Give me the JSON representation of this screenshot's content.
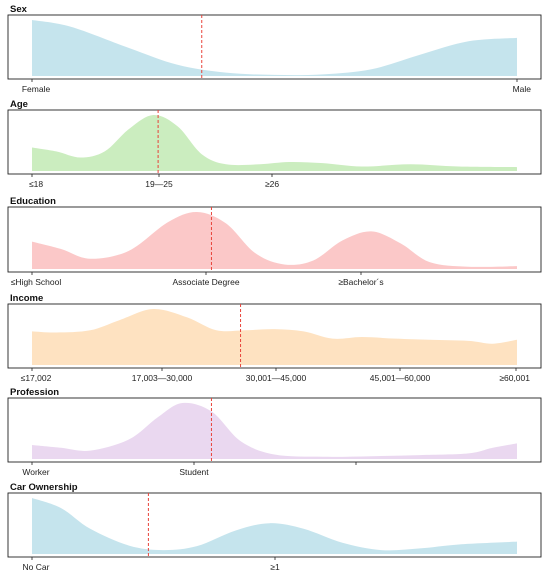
{
  "chart_data": [
    {
      "type": "area",
      "title": "Sex",
      "color": "#add8e6",
      "tick_labels": [
        "Female",
        "Male"
      ],
      "density": [
        [
          0,
          1.0
        ],
        [
          0.08,
          0.88
        ],
        [
          0.2,
          0.5
        ],
        [
          0.3,
          0.2
        ],
        [
          0.4,
          0.06
        ],
        [
          0.5,
          0.02
        ],
        [
          0.6,
          0.03
        ],
        [
          0.7,
          0.12
        ],
        [
          0.8,
          0.38
        ],
        [
          0.9,
          0.62
        ],
        [
          1.0,
          0.68
        ]
      ],
      "mean": 0.35
    },
    {
      "type": "area",
      "title": "Age",
      "color": "#b5e6a4",
      "tick_labels": [
        "≤18",
        "19—25",
        "≥26"
      ],
      "density": [
        [
          0,
          0.42
        ],
        [
          0.05,
          0.35
        ],
        [
          0.1,
          0.24
        ],
        [
          0.15,
          0.35
        ],
        [
          0.2,
          0.75
        ],
        [
          0.25,
          1.0
        ],
        [
          0.3,
          0.8
        ],
        [
          0.35,
          0.3
        ],
        [
          0.4,
          0.12
        ],
        [
          0.47,
          0.12
        ],
        [
          0.53,
          0.16
        ],
        [
          0.6,
          0.14
        ],
        [
          0.68,
          0.08
        ],
        [
          0.78,
          0.12
        ],
        [
          0.88,
          0.08
        ],
        [
          1.0,
          0.07
        ]
      ],
      "mean": 0.26
    },
    {
      "type": "area",
      "title": "Education",
      "color": "#f9b1b1",
      "tick_labels": [
        "≤High School",
        "Associate Degree",
        "≥Bachelor´s"
      ],
      "density": [
        [
          0,
          0.48
        ],
        [
          0.06,
          0.35
        ],
        [
          0.12,
          0.18
        ],
        [
          0.2,
          0.32
        ],
        [
          0.28,
          0.82
        ],
        [
          0.34,
          1.0
        ],
        [
          0.4,
          0.8
        ],
        [
          0.46,
          0.28
        ],
        [
          0.52,
          0.08
        ],
        [
          0.58,
          0.15
        ],
        [
          0.64,
          0.5
        ],
        [
          0.7,
          0.66
        ],
        [
          0.76,
          0.45
        ],
        [
          0.82,
          0.12
        ],
        [
          0.9,
          0.04
        ],
        [
          1.0,
          0.05
        ]
      ],
      "mean": 0.37
    },
    {
      "type": "area",
      "title": "Income",
      "color": "#fdd5a6",
      "tick_labels": [
        "≤17,002",
        "17,003—30,000",
        "30,001—45,000",
        "45,001—60,000",
        "≥60,001"
      ],
      "density": [
        [
          0,
          0.6
        ],
        [
          0.05,
          0.58
        ],
        [
          0.12,
          0.62
        ],
        [
          0.18,
          0.8
        ],
        [
          0.25,
          1.0
        ],
        [
          0.32,
          0.85
        ],
        [
          0.38,
          0.62
        ],
        [
          0.44,
          0.62
        ],
        [
          0.5,
          0.64
        ],
        [
          0.56,
          0.6
        ],
        [
          0.62,
          0.47
        ],
        [
          0.68,
          0.5
        ],
        [
          0.75,
          0.47
        ],
        [
          0.82,
          0.45
        ],
        [
          0.9,
          0.43
        ],
        [
          0.95,
          0.38
        ],
        [
          1.0,
          0.45
        ]
      ],
      "mean": 0.43
    },
    {
      "type": "area",
      "title": "Profession",
      "color": "#e1c8ea",
      "tick_labels": [
        "Worker",
        "Student"
      ],
      "density": [
        [
          0,
          0.25
        ],
        [
          0.06,
          0.2
        ],
        [
          0.12,
          0.15
        ],
        [
          0.2,
          0.35
        ],
        [
          0.26,
          0.75
        ],
        [
          0.31,
          1.0
        ],
        [
          0.37,
          0.85
        ],
        [
          0.43,
          0.32
        ],
        [
          0.5,
          0.08
        ],
        [
          0.6,
          0.04
        ],
        [
          0.7,
          0.05
        ],
        [
          0.8,
          0.07
        ],
        [
          0.9,
          0.1
        ],
        [
          0.95,
          0.2
        ],
        [
          1.0,
          0.28
        ]
      ],
      "mean": 0.37
    },
    {
      "type": "area",
      "title": "Car Ownership",
      "color": "#add8e6",
      "tick_labels": [
        "No Car",
        "≥1"
      ],
      "density": [
        [
          0,
          1.0
        ],
        [
          0.06,
          0.82
        ],
        [
          0.12,
          0.45
        ],
        [
          0.2,
          0.15
        ],
        [
          0.27,
          0.07
        ],
        [
          0.34,
          0.14
        ],
        [
          0.42,
          0.42
        ],
        [
          0.49,
          0.55
        ],
        [
          0.56,
          0.45
        ],
        [
          0.64,
          0.2
        ],
        [
          0.72,
          0.07
        ],
        [
          0.8,
          0.1
        ],
        [
          0.88,
          0.17
        ],
        [
          1.0,
          0.22
        ]
      ],
      "mean": 0.24
    }
  ]
}
